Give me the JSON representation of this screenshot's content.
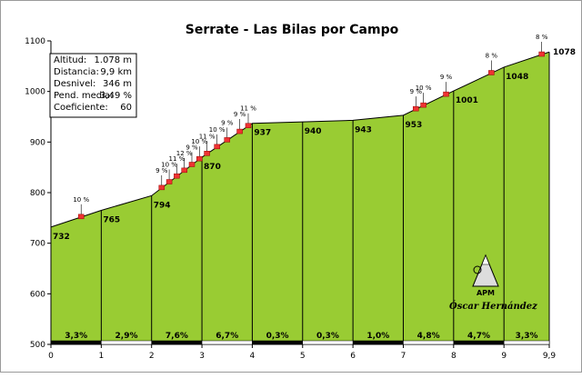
{
  "chart_data": {
    "type": "area",
    "title": "Serrate - Las Bilas por Campo",
    "xlim": [
      0,
      9.9
    ],
    "ylim": [
      500,
      1100
    ],
    "x_ticks": [
      "0",
      "1",
      "2",
      "3",
      "4",
      "5",
      "6",
      "7",
      "8",
      "9",
      "9,9"
    ],
    "y_ticks": [
      "500",
      "600",
      "700",
      "800",
      "900",
      "1000",
      "1100"
    ],
    "profile": [
      {
        "x": 0,
        "y": 732
      },
      {
        "x": 1,
        "y": 765
      },
      {
        "x": 2,
        "y": 794
      },
      {
        "x": 3,
        "y": 870
      },
      {
        "x": 4,
        "y": 937
      },
      {
        "x": 5,
        "y": 940
      },
      {
        "x": 6,
        "y": 943
      },
      {
        "x": 7,
        "y": 953
      },
      {
        "x": 8,
        "y": 1001
      },
      {
        "x": 9,
        "y": 1048
      },
      {
        "x": 9.9,
        "y": 1078
      }
    ],
    "elevation_labels": [
      "732",
      "765",
      "794",
      "870",
      "937",
      "940",
      "943",
      "953",
      "1001",
      "1048",
      "1078"
    ],
    "segment_gradients": [
      "3,3%",
      "2,9%",
      "7,6%",
      "6,7%",
      "0,3%",
      "0,3%",
      "1,0%",
      "4,8%",
      "4,7%",
      "3,3%"
    ],
    "steep_sections": [
      {
        "x": 0.6,
        "label": "10 %"
      },
      {
        "x": 2.2,
        "label": "9 %"
      },
      {
        "x": 2.35,
        "label": "10 %"
      },
      {
        "x": 2.5,
        "label": "11 %"
      },
      {
        "x": 2.65,
        "label": "12 %"
      },
      {
        "x": 2.8,
        "label": "9 %"
      },
      {
        "x": 2.95,
        "label": "10 %"
      },
      {
        "x": 3.1,
        "label": "11 %"
      },
      {
        "x": 3.3,
        "label": "10 %"
      },
      {
        "x": 3.5,
        "label": "9 %"
      },
      {
        "x": 3.75,
        "label": "9 %"
      },
      {
        "x": 3.92,
        "label": "11 %"
      },
      {
        "x": 7.25,
        "label": "9 %"
      },
      {
        "x": 7.4,
        "label": "10 %"
      },
      {
        "x": 7.85,
        "label": "9 %"
      },
      {
        "x": 8.75,
        "label": "8 %"
      },
      {
        "x": 9.75,
        "label": "8 %"
      }
    ],
    "colors": {
      "fill": "#99cc33",
      "line": "#000000",
      "steep": "#ee3333"
    },
    "grid": false
  },
  "info_box": {
    "rows": [
      {
        "label": "Altitud:",
        "value": "1.078 m"
      },
      {
        "label": "Distancia:",
        "value": "9,9 km"
      },
      {
        "label": "Desnivel:",
        "value": "346 m"
      },
      {
        "label": "Pend. media:",
        "value": "3,49 %"
      },
      {
        "label": "Coeficiente:",
        "value": "60"
      }
    ]
  },
  "logo": {
    "text": "APM"
  },
  "author": "Óscar Hernández"
}
